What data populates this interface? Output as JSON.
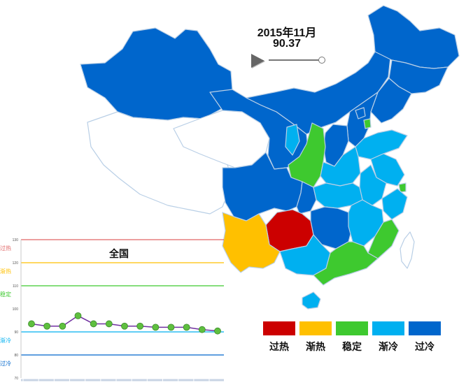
{
  "header": {
    "date": "2015年11月",
    "value": "90.37"
  },
  "legend": [
    {
      "label": "过热",
      "color": "#cc0000"
    },
    {
      "label": "渐热",
      "color": "#ffc000"
    },
    {
      "label": "稳定",
      "color": "#3ec92f"
    },
    {
      "label": "渐冷",
      "color": "#00b0f0"
    },
    {
      "label": "过冷",
      "color": "#0066cc"
    }
  ],
  "map": {
    "provinces": [
      {
        "name": "xinjiang",
        "status": "过冷"
      },
      {
        "name": "tibet",
        "status": "none"
      },
      {
        "name": "qinghai",
        "status": "none"
      },
      {
        "name": "gansu",
        "status": "过冷"
      },
      {
        "name": "inner-mongolia",
        "status": "过冷"
      },
      {
        "name": "heilongjiang",
        "status": "过冷"
      },
      {
        "name": "jilin",
        "status": "过冷"
      },
      {
        "name": "liaoning",
        "status": "过冷"
      },
      {
        "name": "beijing",
        "status": "过冷"
      },
      {
        "name": "tianjin",
        "status": "稳定"
      },
      {
        "name": "hebei",
        "status": "过冷"
      },
      {
        "name": "shanxi",
        "status": "过冷"
      },
      {
        "name": "ningxia",
        "status": "渐冷"
      },
      {
        "name": "shaanxi",
        "status": "稳定"
      },
      {
        "name": "shandong",
        "status": "渐冷"
      },
      {
        "name": "henan",
        "status": "渐冷"
      },
      {
        "name": "jiangsu",
        "status": "渐冷"
      },
      {
        "name": "anhui",
        "status": "渐冷"
      },
      {
        "name": "shanghai",
        "status": "稳定"
      },
      {
        "name": "zhejiang",
        "status": "渐冷"
      },
      {
        "name": "hubei",
        "status": "渐冷"
      },
      {
        "name": "sichuan",
        "status": "过冷"
      },
      {
        "name": "chongqing",
        "status": "过冷"
      },
      {
        "name": "guizhou",
        "status": "过热"
      },
      {
        "name": "hunan",
        "status": "过冷"
      },
      {
        "name": "jiangxi",
        "status": "渐冷"
      },
      {
        "name": "fujian",
        "status": "稳定"
      },
      {
        "name": "yunnan",
        "status": "渐热"
      },
      {
        "name": "guangxi",
        "status": "渐冷"
      },
      {
        "name": "guangdong",
        "status": "稳定"
      },
      {
        "name": "hainan",
        "status": "渐冷"
      },
      {
        "name": "taiwan",
        "status": "none"
      }
    ]
  },
  "chart_data": {
    "type": "line",
    "title": "全国",
    "ylim": [
      70,
      130
    ],
    "yticks": [
      70,
      80,
      90,
      100,
      110,
      120,
      130
    ],
    "values": [
      93.5,
      92.5,
      92.5,
      97,
      93.5,
      93.5,
      92.5,
      92.5,
      92,
      92,
      92,
      91,
      90.4
    ],
    "reference_lines": [
      {
        "label": "过热",
        "value": 130,
        "color": "#e06666"
      },
      {
        "label": "渐热",
        "value": 120,
        "color": "#ffc000"
      },
      {
        "label": "稳定",
        "value": 110,
        "color": "#3ec92f"
      },
      {
        "label": "渐冷",
        "value": 90,
        "color": "#00b0f0"
      },
      {
        "label": "过冷",
        "value": 80,
        "color": "#0066cc"
      }
    ],
    "line_color": "#7030a0",
    "marker_color": "#5fbf3f"
  }
}
